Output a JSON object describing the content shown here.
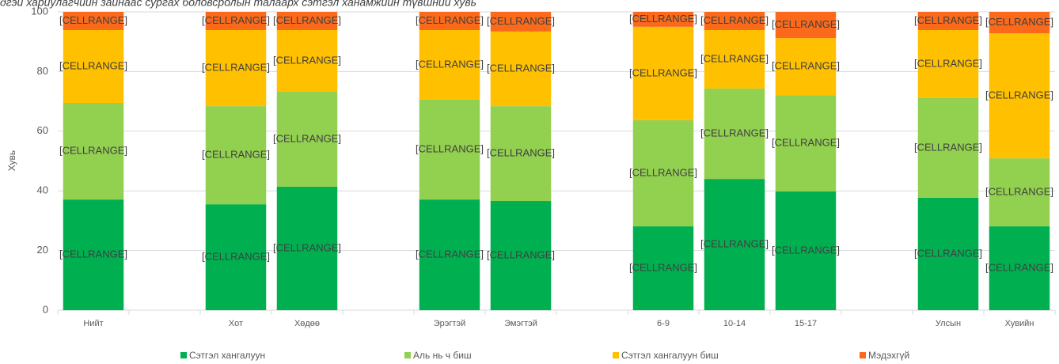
{
  "chart_data": {
    "type": "stacked_bar",
    "title": "дгэй хариулагчийн зайнаас сургах боловсролын талаарх сэтгэл ханамжийн түвшний хувь",
    "y_label": "Хувь",
    "categories": [
      "Нийт",
      null,
      "Хот",
      "Хөдөө",
      null,
      "Эрэгтэй",
      "Эмэгтэй",
      null,
      "6-9",
      "10-14",
      "15-17",
      null,
      "Улсын",
      "Хувийн"
    ],
    "ylim": [
      0,
      100
    ],
    "yticks": [
      0,
      20,
      40,
      60,
      80,
      100
    ],
    "grid": true,
    "legend": "bottom",
    "series": [
      {
        "name": "Сэтгэл хангалуун",
        "color": "#00b050",
        "values": [
          37.1,
          null,
          35.5,
          41.4,
          null,
          37.1,
          36.6,
          null,
          28.1,
          44.0,
          39.8,
          null,
          37.7,
          28.1
        ],
        "value_labels": [
          "[CELLRANGE]",
          null,
          "[CELLRANGE]",
          "[CELLRANGE]",
          null,
          "[CELLRANGE]",
          "[CELLRANGE]",
          null,
          "[CELLRANGE]",
          "[CELLRANGE]",
          "[CELLRANGE]",
          null,
          "[CELLRANGE]",
          "[CELLRANGE]"
        ]
      },
      {
        "name": "Аль нь ч биш",
        "color": "#92d050",
        "values": [
          32.4,
          null,
          32.9,
          31.8,
          null,
          33.5,
          31.8,
          null,
          35.6,
          30.3,
          32.3,
          null,
          33.4,
          22.8
        ],
        "value_labels": [
          "[CELLRANGE]",
          null,
          "[CELLRANGE]",
          "[CELLRANGE]",
          null,
          "[CELLRANGE]",
          "[CELLRANGE]",
          null,
          "[CELLRANGE]",
          "[CELLRANGE]",
          "[CELLRANGE]",
          null,
          "[CELLRANGE]",
          "[CELLRANGE]"
        ]
      },
      {
        "name": "Сэтгэл хангалуун биш",
        "color": "#ffc000",
        "values": [
          24.4,
          null,
          25.5,
          20.7,
          null,
          23.3,
          25.0,
          null,
          31.3,
          19.6,
          19.1,
          null,
          22.8,
          41.9
        ],
        "value_labels": [
          "[CELLRANGE]",
          null,
          "[CELLRANGE]",
          "[CELLRANGE]",
          null,
          "[CELLRANGE]",
          "[CELLRANGE]",
          null,
          "[CELLRANGE]",
          "[CELLRANGE]",
          "[CELLRANGE]",
          null,
          "[CELLRANGE]",
          "[CELLRANGE]"
        ]
      },
      {
        "name": "Мэдэхгүй",
        "color": "#fa6a1a",
        "values": [
          6.1,
          null,
          6.1,
          6.1,
          null,
          6.1,
          6.6,
          null,
          5.0,
          6.1,
          8.8,
          null,
          6.1,
          7.2
        ],
        "value_labels": [
          "[CELLRANGE]",
          null,
          "[CELLRANGE]",
          "[CELLRANGE]",
          null,
          "[CELLRANGE]",
          "[CELLRANGE]",
          null,
          "[CELLRANGE]",
          "[CELLRANGE]",
          "[CELLRANGE]",
          null,
          "[CELLRANGE]",
          "[CELLRANGE]"
        ]
      }
    ]
  }
}
